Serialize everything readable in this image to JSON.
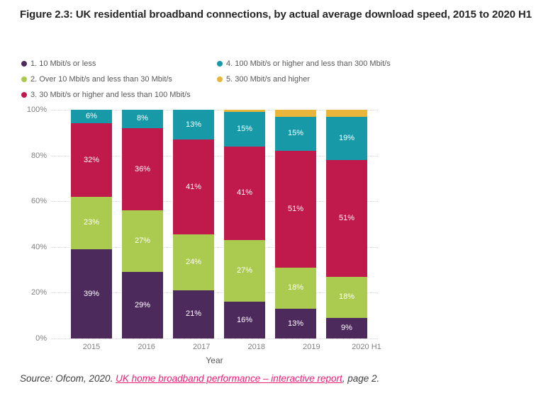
{
  "figure": {
    "title": "Figure 2.3: UK residential broadband connections, by actual average download speed, 2015 to 2020 H1"
  },
  "chart_data": {
    "type": "bar",
    "stacked": true,
    "percent_axis": true,
    "title": "UK residential broadband connections, by actual average download speed",
    "categories": [
      "2015",
      "2016",
      "2017",
      "2018",
      "2019",
      "2020 H1"
    ],
    "series": [
      {
        "name": "1. 10 Mbit/s or less",
        "color": "#4D2A5C",
        "values": [
          39,
          29,
          21,
          16,
          13,
          9
        ],
        "data_labels": true
      },
      {
        "name": "2. Over 10 Mbit/s and less than 30 Mbit/s",
        "color": "#ABCA50",
        "values": [
          23,
          27,
          24,
          27,
          18,
          18
        ],
        "data_labels": true
      },
      {
        "name": "3. 30 Mbit/s or higher and less than 100 Mbit/s",
        "color": "#BF1A4B",
        "values": [
          32,
          36,
          41,
          41,
          51,
          51
        ],
        "data_labels": true
      },
      {
        "name": "4. 100 Mbit/s or higher and less than 300 Mbit/s",
        "color": "#1899A8",
        "values": [
          6,
          8,
          13,
          15,
          15,
          19
        ],
        "data_labels": true
      },
      {
        "name": "5. 300 Mbit/s and higher",
        "color": "#E9B53B",
        "values": [
          0,
          0,
          0,
          1,
          3,
          3
        ],
        "data_labels": false
      }
    ],
    "xlabel": "Year",
    "ylabel": "",
    "y_ticks": [
      "100%",
      "80%",
      "60%",
      "40%",
      "20%",
      "0%"
    ],
    "ylim": [
      0,
      100
    ],
    "grid": "dotted-horizontal",
    "legend_position": "top-left-two-columns",
    "label_suffix": "%"
  },
  "source": {
    "prefix": "Source: Ofcom, 2020. ",
    "link_text": "UK home broadband performance – interactive report",
    "suffix": ", page 2."
  },
  "colors": {
    "title_text": "#262626",
    "legend_text": "#595959",
    "axis_text": "#808080",
    "gridline": "#d9d9d9",
    "link": "#EC1D78",
    "background": "#ffffff"
  }
}
